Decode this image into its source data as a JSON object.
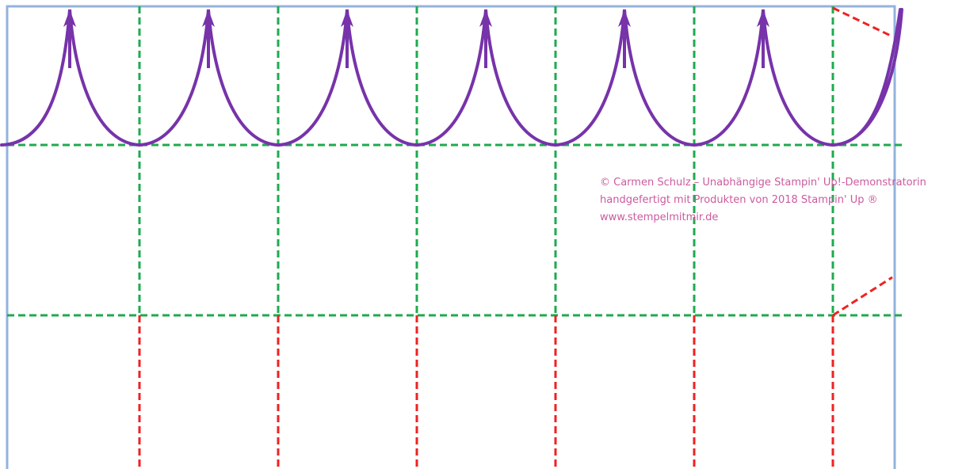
{
  "template": {
    "columns": 7,
    "colors": {
      "outline": "#93b3dd",
      "fold_line": "#1faa4f",
      "cut_line": "#ee2222",
      "scallop": "#7733aa",
      "watermark_text": "#cc5a9e"
    },
    "icons": [
      "arrow-up-icon"
    ]
  },
  "watermark": {
    "line1": "© Carmen Schulz – Unabhängige Stampin' Up!-Demonstratorin",
    "line2": "handgefertigt mit Produkten von 2018 Stampin' Up ®",
    "line3": "www.stempelmitmir.de"
  }
}
